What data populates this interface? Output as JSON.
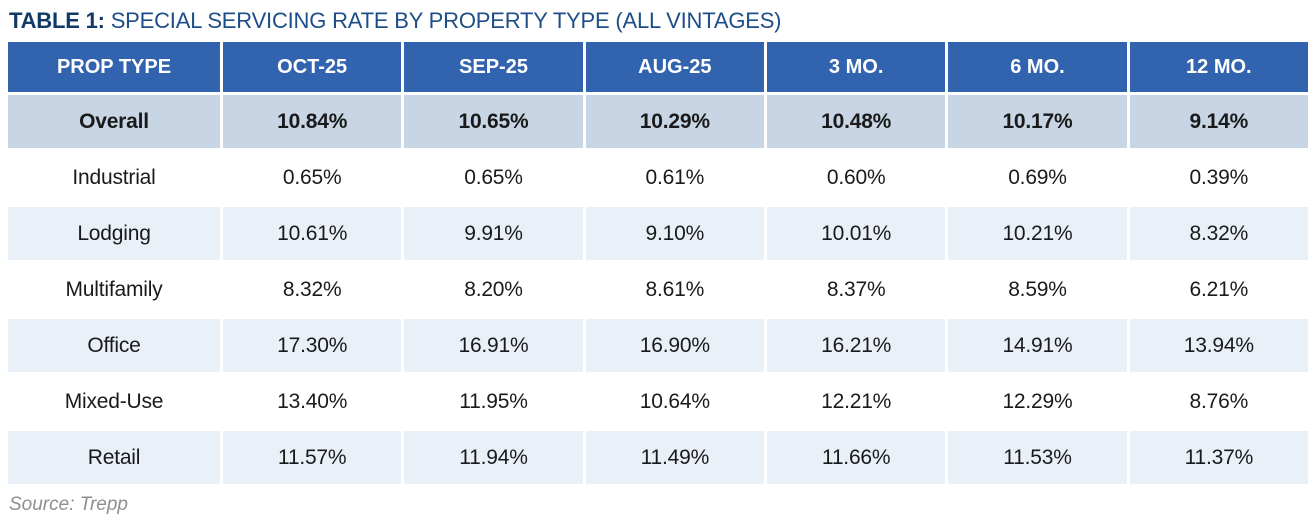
{
  "title": {
    "prefix": "TABLE 1:",
    "text": "SPECIAL SERVICING RATE BY PROPERTY TYPE (ALL VINTAGES)"
  },
  "source_note": "Source: Trepp",
  "colors": {
    "header_bg": "#3263ae",
    "overall_row_bg": "#c7d5e4",
    "alt_row_bg": "#e9f0f8",
    "title_prefix": "#123a66",
    "title_text": "#1d4e8a",
    "source_text": "#8f8f8f"
  },
  "chart_data": {
    "type": "table",
    "title": "Special Servicing Rate by Property Type (All Vintages)",
    "columns": [
      "PROP TYPE",
      "OCT-25",
      "SEP-25",
      "AUG-25",
      "3 MO.",
      "6 MO.",
      "12 MO."
    ],
    "rows": [
      {
        "label": "Overall",
        "emphasis": true,
        "values": [
          "10.84%",
          "10.65%",
          "10.29%",
          "10.48%",
          "10.17%",
          "9.14%"
        ]
      },
      {
        "label": "Industrial",
        "emphasis": false,
        "values": [
          "0.65%",
          "0.65%",
          "0.61%",
          "0.60%",
          "0.69%",
          "0.39%"
        ]
      },
      {
        "label": "Lodging",
        "emphasis": false,
        "values": [
          "10.61%",
          "9.91%",
          "9.10%",
          "10.01%",
          "10.21%",
          "8.32%"
        ]
      },
      {
        "label": "Multifamily",
        "emphasis": false,
        "values": [
          "8.32%",
          "8.20%",
          "8.61%",
          "8.37%",
          "8.59%",
          "6.21%"
        ]
      },
      {
        "label": "Office",
        "emphasis": false,
        "values": [
          "17.30%",
          "16.91%",
          "16.90%",
          "16.21%",
          "14.91%",
          "13.94%"
        ]
      },
      {
        "label": "Mixed-Use",
        "emphasis": false,
        "values": [
          "13.40%",
          "11.95%",
          "10.64%",
          "12.21%",
          "12.29%",
          "8.76%"
        ]
      },
      {
        "label": "Retail",
        "emphasis": false,
        "values": [
          "11.57%",
          "11.94%",
          "11.49%",
          "11.66%",
          "11.53%",
          "11.37%"
        ]
      }
    ]
  }
}
